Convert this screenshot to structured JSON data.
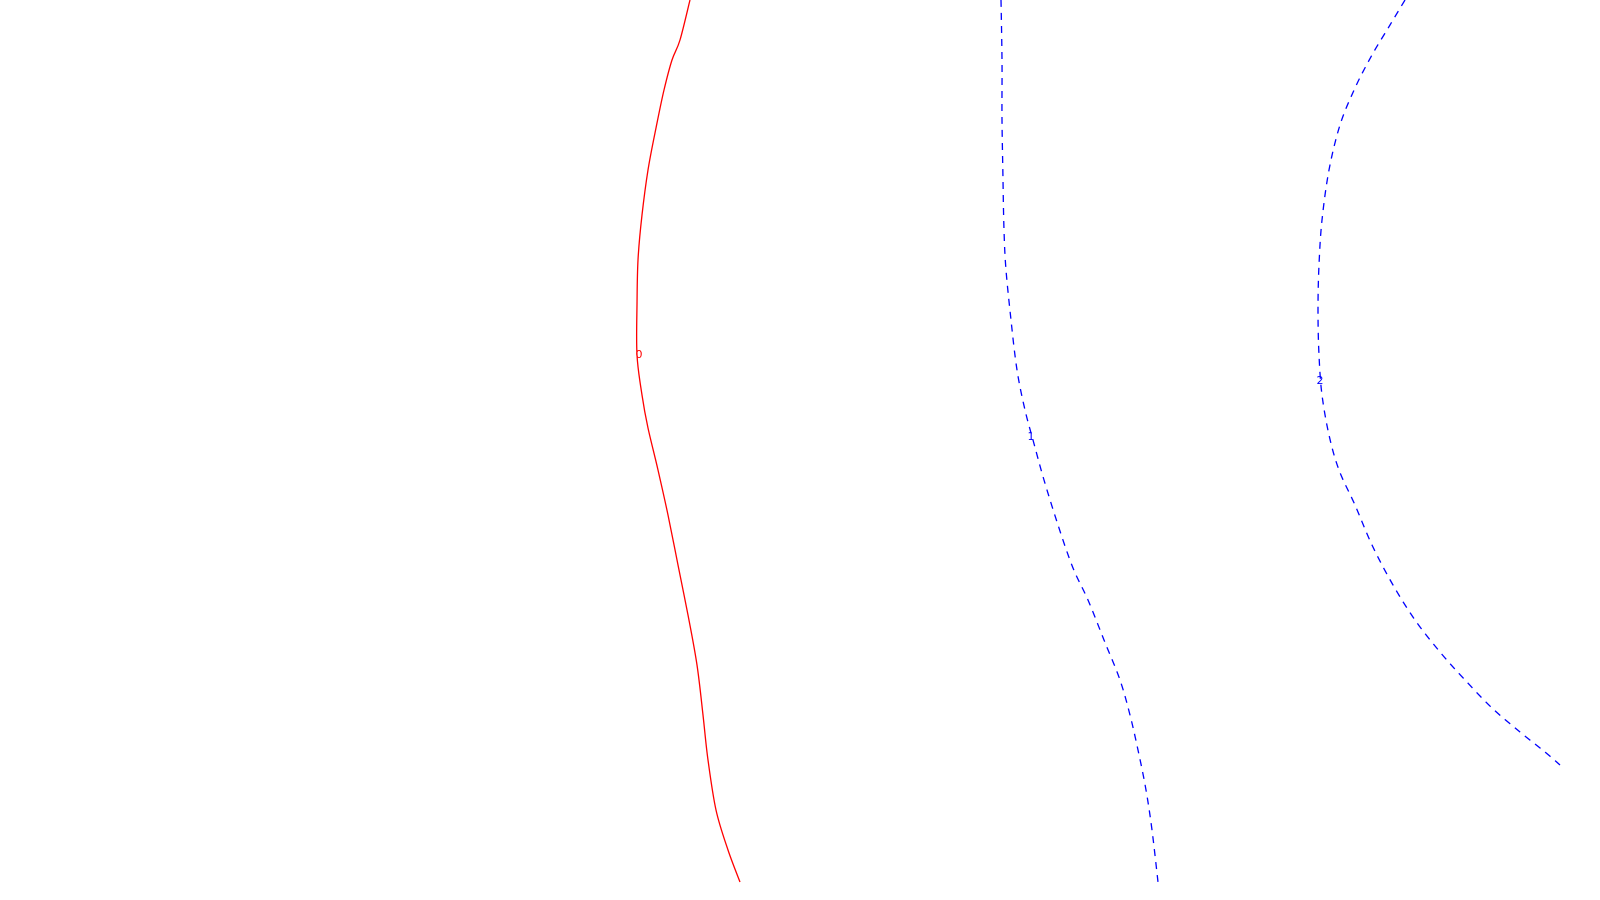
{
  "chart_data": {
    "type": "contour",
    "title": "",
    "xlabel": "",
    "ylabel": "",
    "grid": false,
    "legend": false,
    "contours": [
      {
        "level": "0",
        "color": "#ff0000",
        "style": "solid",
        "path": [
          [
            690,
            0
          ],
          [
            680,
            40
          ],
          [
            672,
            60
          ],
          [
            664,
            90
          ],
          [
            656,
            128
          ],
          [
            648,
            170
          ],
          [
            642,
            215
          ],
          [
            638,
            260
          ],
          [
            637,
            305
          ],
          [
            637,
            355
          ],
          [
            642,
            395
          ],
          [
            648,
            428
          ],
          [
            658,
            470
          ],
          [
            668,
            515
          ],
          [
            678,
            565
          ],
          [
            688,
            615
          ],
          [
            697,
            665
          ],
          [
            703,
            715
          ],
          [
            708,
            760
          ],
          [
            716,
            810
          ],
          [
            728,
            850
          ],
          [
            740,
            882
          ]
        ],
        "label_at": [
          639,
          355
        ]
      },
      {
        "level": "1",
        "color": "#0000ff",
        "style": "dashed",
        "path": [
          [
            1001,
            0
          ],
          [
            1002,
            60
          ],
          [
            1002,
            120
          ],
          [
            1003,
            180
          ],
          [
            1004,
            230
          ],
          [
            1006,
            270
          ],
          [
            1011,
            320
          ],
          [
            1017,
            370
          ],
          [
            1025,
            410
          ],
          [
            1033,
            440
          ],
          [
            1044,
            480
          ],
          [
            1058,
            525
          ],
          [
            1073,
            568
          ],
          [
            1088,
            600
          ],
          [
            1104,
            640
          ],
          [
            1120,
            680
          ],
          [
            1130,
            715
          ],
          [
            1138,
            750
          ],
          [
            1146,
            790
          ],
          [
            1152,
            830
          ],
          [
            1158,
            882
          ]
        ],
        "label_at": [
          1031,
          437
        ]
      },
      {
        "level": "2",
        "color": "#0000ff",
        "style": "dashed",
        "path": [
          [
            1405,
            0
          ],
          [
            1390,
            25
          ],
          [
            1372,
            55
          ],
          [
            1355,
            88
          ],
          [
            1340,
            125
          ],
          [
            1329,
            170
          ],
          [
            1322,
            220
          ],
          [
            1319,
            265
          ],
          [
            1318,
            310
          ],
          [
            1319,
            355
          ],
          [
            1322,
            395
          ],
          [
            1329,
            435
          ],
          [
            1339,
            470
          ],
          [
            1355,
            505
          ],
          [
            1372,
            545
          ],
          [
            1393,
            585
          ],
          [
            1415,
            620
          ],
          [
            1440,
            652
          ],
          [
            1465,
            680
          ],
          [
            1492,
            708
          ],
          [
            1520,
            732
          ],
          [
            1545,
            752
          ],
          [
            1560,
            765
          ]
        ],
        "label_at": [
          1320,
          381
        ]
      }
    ]
  }
}
